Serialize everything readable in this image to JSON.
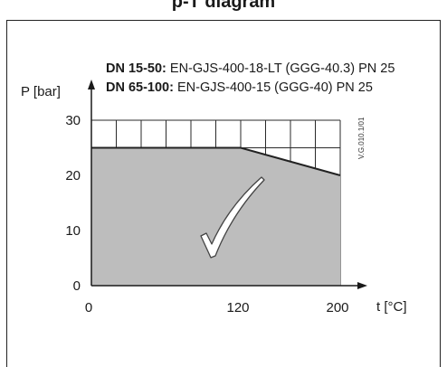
{
  "heading": "p-T diagram",
  "notes": [
    {
      "bold": "DN 15-50:",
      "text": " EN-GJS-400-18-LT (GGG-40.3) PN 25"
    },
    {
      "bold": "DN 65-100:",
      "text": " EN-GJS-400-15 (GGG-40) PN 25"
    }
  ],
  "figure_code": "V.G.010.1/01",
  "chart_data": {
    "type": "area",
    "title": "",
    "xlabel": "t [°C]",
    "ylabel": "P [bar]",
    "xlim": [
      0,
      200
    ],
    "ylim": [
      0,
      30
    ],
    "x_ticks": [
      0,
      120,
      200
    ],
    "y_ticks": [
      0,
      10,
      20,
      30
    ],
    "grid": true,
    "grid_step_x": 20,
    "grid_step_y": 5,
    "series": [
      {
        "x": [
          0,
          120,
          200
        ],
        "y": [
          25,
          25,
          20
        ]
      }
    ],
    "fill_color": "#bdbdbd",
    "line_color": "#222222",
    "marker": "checkmark"
  }
}
